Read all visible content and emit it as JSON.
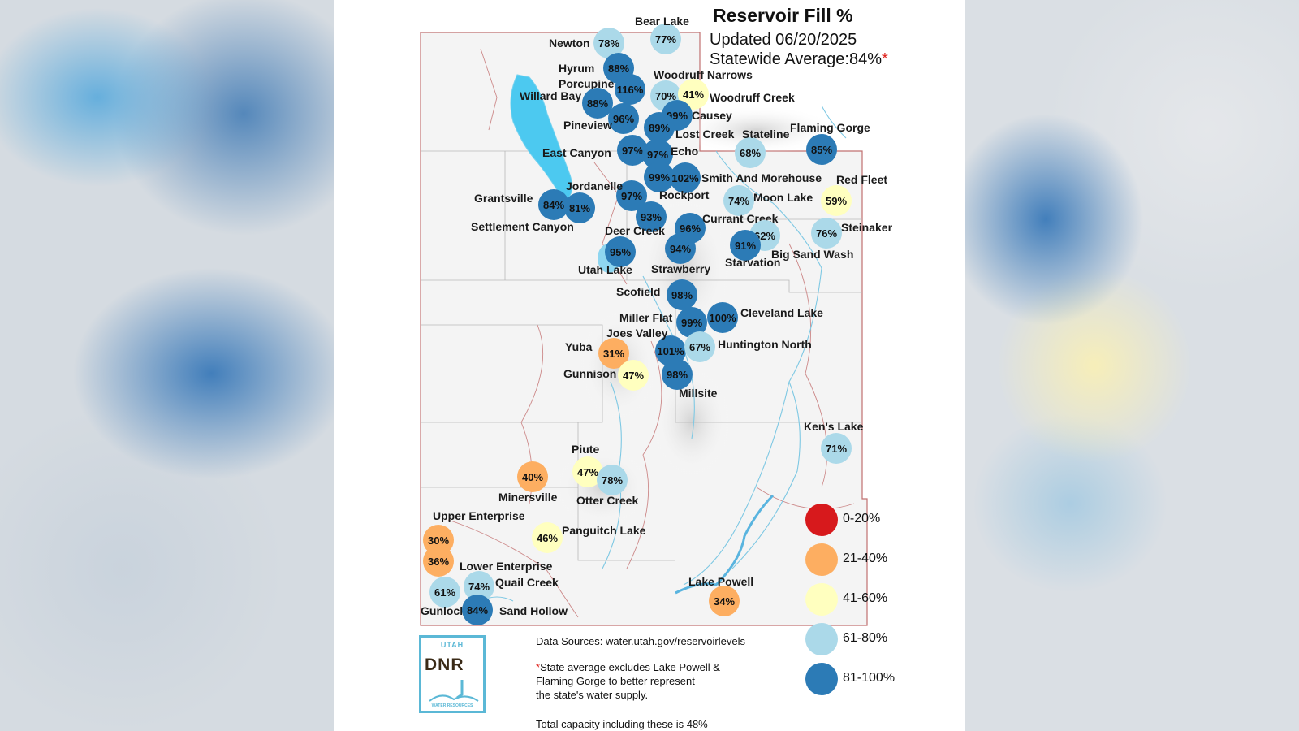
{
  "title": "Reservoir Fill %",
  "updated": "Updated 06/20/2025",
  "statewide": "Statewide Average:84%",
  "statewide_mark": "*",
  "colors": {
    "0-20": "#d7191c",
    "21-40": "#fdae61",
    "41-60": "#ffffbf",
    "61-80": "#abd9e9",
    "81-100": "#2c7bb6"
  },
  "legend": [
    {
      "label": "0-20%",
      "color_key": "0-20"
    },
    {
      "label": "21-40%",
      "color_key": "21-40"
    },
    {
      "label": "41-60%",
      "color_key": "41-60"
    },
    {
      "label": "61-80%",
      "color_key": "61-80"
    },
    {
      "label": "81-100%",
      "color_key": "81-100"
    }
  ],
  "reservoirs": [
    {
      "name": "Bear Lake",
      "pct": "77%",
      "color_key": "61-80"
    },
    {
      "name": "Newton",
      "pct": "78%",
      "color_key": "61-80"
    },
    {
      "name": "Hyrum",
      "pct": "88%",
      "color_key": "81-100"
    },
    {
      "name": "Porcupine",
      "pct": "116%",
      "color_key": "81-100"
    },
    {
      "name": "Willard Bay",
      "pct": "88%",
      "color_key": "81-100"
    },
    {
      "name": "Woodruff Narrows",
      "pct": "70%",
      "color_key": "61-80"
    },
    {
      "name": "Woodruff Creek",
      "pct": "41%",
      "color_key": "41-60"
    },
    {
      "name": "Causey",
      "pct": "99%",
      "color_key": "81-100"
    },
    {
      "name": "Pineview",
      "pct": "96%",
      "color_key": "81-100"
    },
    {
      "name": "Lost Creek",
      "pct": "89%",
      "color_key": "81-100"
    },
    {
      "name": "Stateline",
      "pct": "68%",
      "color_key": "61-80"
    },
    {
      "name": "Flaming Gorge",
      "pct": "85%",
      "color_key": "81-100"
    },
    {
      "name": "East Canyon",
      "pct": "97%",
      "color_key": "81-100"
    },
    {
      "name": "Echo",
      "pct": "97%",
      "color_key": "81-100"
    },
    {
      "name": "Smith And Morehouse",
      "pct": "99%",
      "color_key": "81-100"
    },
    {
      "name": "Rockport",
      "pct": "102%",
      "color_key": "81-100"
    },
    {
      "name": "Red Fleet",
      "pct": "59%",
      "color_key": "41-60"
    },
    {
      "name": "Jordanelle",
      "pct": "97%",
      "color_key": "81-100"
    },
    {
      "name": "Moon Lake",
      "pct": "74%",
      "color_key": "61-80"
    },
    {
      "name": "Grantsville",
      "pct": "84%",
      "color_key": "81-100"
    },
    {
      "name": "Settlement Canyon",
      "pct": "81%",
      "color_key": "81-100"
    },
    {
      "name": "Deer Creek",
      "pct": "93%",
      "color_key": "81-100"
    },
    {
      "name": "Currant Creek",
      "pct": "96%",
      "color_key": "81-100"
    },
    {
      "name": "Big Sand Wash",
      "pct": "62%",
      "color_key": "61-80"
    },
    {
      "name": "Steinaker",
      "pct": "76%",
      "color_key": "61-80"
    },
    {
      "name": "Utah Lake",
      "pct": "95%",
      "color_key": "81-100"
    },
    {
      "name": "Strawberry",
      "pct": "94%",
      "color_key": "81-100"
    },
    {
      "name": "Starvation",
      "pct": "91%",
      "color_key": "81-100"
    },
    {
      "name": "Scofield",
      "pct": "98%",
      "color_key": "81-100"
    },
    {
      "name": "Miller Flat",
      "pct": "99%",
      "color_key": "81-100"
    },
    {
      "name": "Cleveland Lake",
      "pct": "100%",
      "color_key": "81-100"
    },
    {
      "name": "Joes Valley",
      "pct": "101%",
      "color_key": "81-100"
    },
    {
      "name": "Huntington North",
      "pct": "67%",
      "color_key": "61-80"
    },
    {
      "name": "Yuba",
      "pct": "31%",
      "color_key": "21-40"
    },
    {
      "name": "Gunnison",
      "pct": "47%",
      "color_key": "41-60"
    },
    {
      "name": "Millsite",
      "pct": "98%",
      "color_key": "81-100"
    },
    {
      "name": "Ken's Lake",
      "pct": "71%",
      "color_key": "61-80"
    },
    {
      "name": "Piute",
      "pct": "47%",
      "color_key": "41-60"
    },
    {
      "name": "Otter Creek",
      "pct": "78%",
      "color_key": "61-80"
    },
    {
      "name": "Minersville",
      "pct": "40%",
      "color_key": "21-40"
    },
    {
      "name": "Panguitch Lake",
      "pct": "46%",
      "color_key": "41-60"
    },
    {
      "name": "Upper Enterprise",
      "pct": "30%",
      "color_key": "21-40"
    },
    {
      "name": "Lower Enterprise",
      "pct": "36%",
      "color_key": "21-40"
    },
    {
      "name": "Quail Creek",
      "pct": "74%",
      "color_key": "61-80"
    },
    {
      "name": "Gunlock",
      "pct": "61%",
      "color_key": "61-80"
    },
    {
      "name": "Sand Hollow",
      "pct": "84%",
      "color_key": "81-100"
    },
    {
      "name": "Lake Powell",
      "pct": "34%",
      "color_key": "21-40"
    }
  ],
  "notes": {
    "sources": "Data Sources: water.utah.gov/reservoirlevels",
    "mark": "*",
    "excl1": "State average excludes Lake Powell &",
    "excl2": "Flaming Gorge to better represent",
    "excl3": "the state's water supply.",
    "total": "Total capacity including these is 48%"
  },
  "logo": {
    "state": "UTAH",
    "agency": "DNR",
    "division": "WATER RESOURCES"
  }
}
